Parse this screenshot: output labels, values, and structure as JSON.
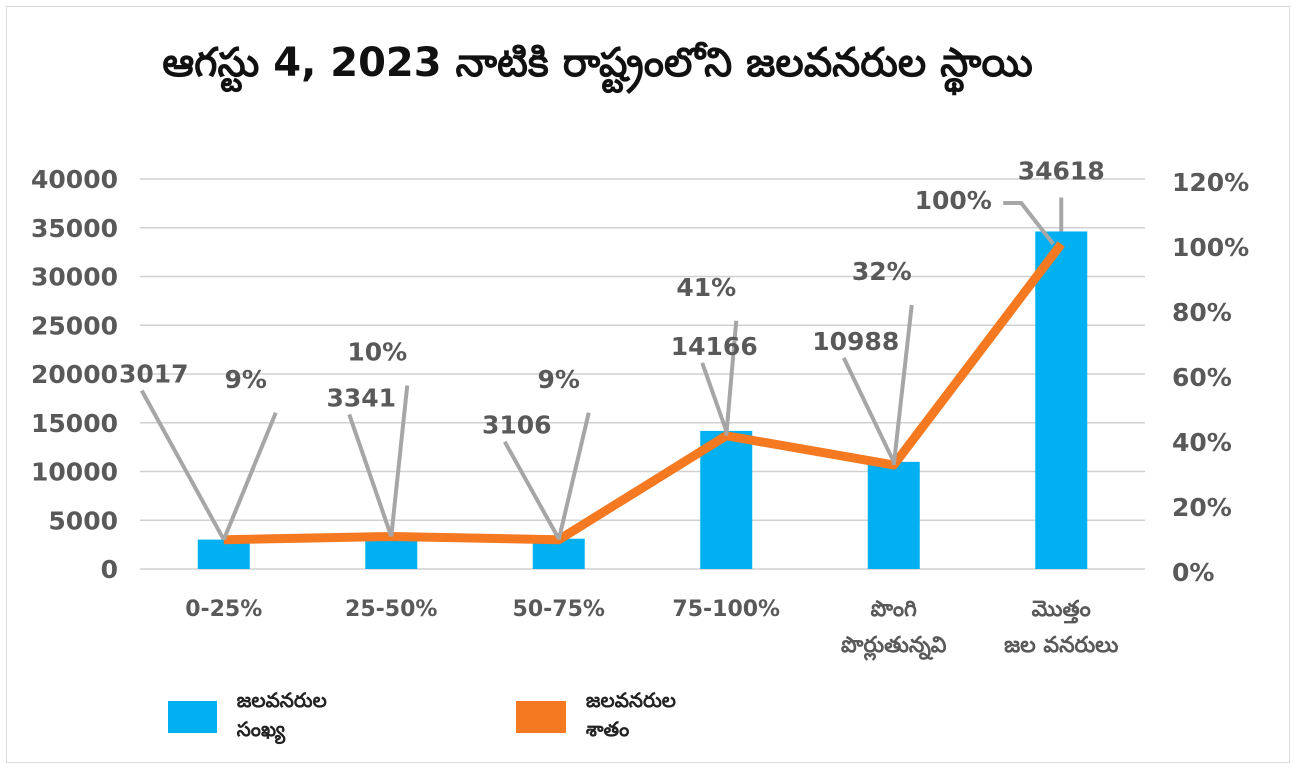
{
  "chart_data": {
    "type": "bar",
    "title": "ఆగస్టు 4, 2023 నాటికి రాష్ట్రంలోని జలవనరుల స్థాయి",
    "categories": [
      [
        "0-25%"
      ],
      [
        "25-50%"
      ],
      [
        "50-75%"
      ],
      [
        "75-100%"
      ],
      [
        "పొంగి",
        "పొర్లుతున్నవి"
      ],
      [
        "మొత్తం",
        "జల వనరులు"
      ]
    ],
    "series": [
      {
        "name": "జలవనరుల సంఖ్య",
        "type": "bar",
        "axis": "left",
        "color": "#00b0f0",
        "values": [
          3017,
          3341,
          3106,
          14166,
          10988,
          34618
        ],
        "labels": [
          "3017",
          "3341",
          "3106",
          "14166",
          "10988",
          "34618"
        ]
      },
      {
        "name": "జలవనరుల శాతం",
        "type": "line",
        "axis": "right",
        "color": "#f47920",
        "values": [
          9,
          10,
          9,
          41,
          32,
          100
        ],
        "labels": [
          "9%",
          "10%",
          "9%",
          "41%",
          "32%",
          "100%"
        ]
      }
    ],
    "y_left": {
      "min": 0,
      "max": 40000,
      "ticks": [
        "0",
        "5000",
        "10000",
        "15000",
        "20000",
        "25000",
        "30000",
        "35000",
        "40000"
      ]
    },
    "y_right": {
      "min": 0,
      "max": 120,
      "ticks": [
        "0%",
        "20%",
        "40%",
        "60%",
        "80%",
        "100%",
        "120%"
      ]
    },
    "grid": true,
    "legend_position": "bottom-left"
  }
}
